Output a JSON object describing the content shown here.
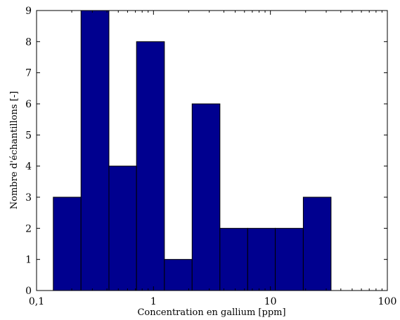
{
  "chart_data": {
    "type": "bar",
    "subtype": "histogram",
    "x_scale": "log",
    "xlabel": "Concentration en gallium [ppm]",
    "ylabel": "Nombre d'échantillons [-]",
    "xlim": [
      0.1,
      100
    ],
    "ylim": [
      0,
      9
    ],
    "x_ticks": [
      {
        "value": 0.1,
        "label": "0,1"
      },
      {
        "value": 1,
        "label": "1"
      },
      {
        "value": 10,
        "label": "10"
      },
      {
        "value": 100,
        "label": "100"
      }
    ],
    "y_ticks": [
      0,
      1,
      2,
      3,
      4,
      5,
      6,
      7,
      8,
      9
    ],
    "bins": [
      {
        "from": 0.139,
        "to": 0.24,
        "count": 3
      },
      {
        "from": 0.24,
        "to": 0.416,
        "count": 9
      },
      {
        "from": 0.416,
        "to": 0.716,
        "count": 4
      },
      {
        "from": 0.716,
        "to": 1.24,
        "count": 8
      },
      {
        "from": 1.24,
        "to": 2.14,
        "count": 1
      },
      {
        "from": 2.14,
        "to": 3.7,
        "count": 6
      },
      {
        "from": 3.7,
        "to": 6.39,
        "count": 2
      },
      {
        "from": 6.39,
        "to": 11.0,
        "count": 2
      },
      {
        "from": 11.0,
        "to": 19.1,
        "count": 2
      },
      {
        "from": 19.1,
        "to": 33.0,
        "count": 3
      }
    ],
    "bar_color": "#00008f",
    "edge_color": "#000000",
    "grid": false,
    "legend": "none"
  }
}
